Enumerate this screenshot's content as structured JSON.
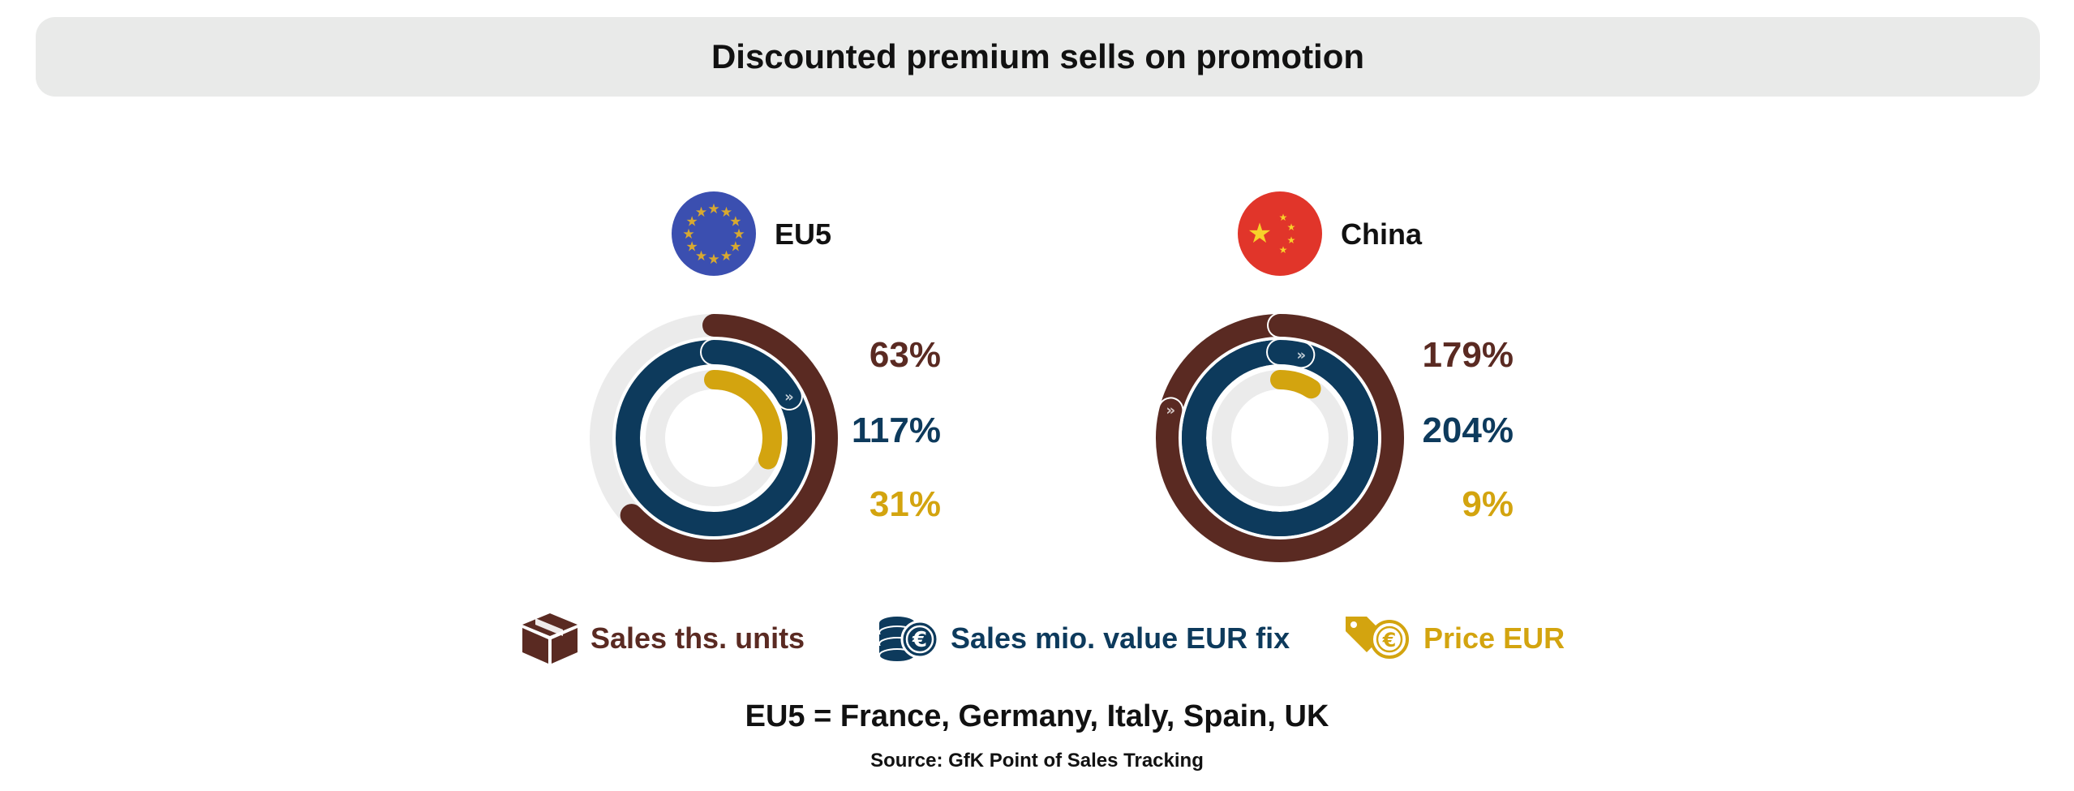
{
  "title": "Discounted premium sells on promotion",
  "colors": {
    "units": "#5a2a22",
    "value": "#0d3a5c",
    "price": "#d3a40f",
    "track": "#ebebeb",
    "eu_blue": "#3b4fb0",
    "eu_star": "#d8a930",
    "china_red": "#e1352a",
    "china_star": "#f7d02a"
  },
  "chart_data": [
    {
      "type": "radial-bar",
      "region": "EU5",
      "flag_icon": "eu-flag-icon",
      "series": [
        {
          "name": "Sales ths. units",
          "value": 63,
          "label": "63%"
        },
        {
          "name": "Sales mio. value EUR fix",
          "value": 117,
          "label": "117%"
        },
        {
          "name": "Price EUR",
          "value": 31,
          "label": "31%"
        }
      ]
    },
    {
      "type": "radial-bar",
      "region": "China",
      "flag_icon": "china-flag-icon",
      "series": [
        {
          "name": "Sales ths. units",
          "value": 179,
          "label": "179%"
        },
        {
          "name": "Sales mio. value EUR fix",
          "value": 204,
          "label": "204%"
        },
        {
          "name": "Price EUR",
          "value": 9,
          "label": "9%"
        }
      ]
    }
  ],
  "legend": [
    {
      "label": "Sales ths. units",
      "icon": "box-icon"
    },
    {
      "label": "Sales mio. value EUR fix",
      "icon": "coins-euro-icon"
    },
    {
      "label": "Price EUR",
      "icon": "price-tag-euro-icon"
    }
  ],
  "footnote": "EU5 = France, Germany, Italy, Spain, UK",
  "source": "Source: GfK Point of Sales Tracking"
}
